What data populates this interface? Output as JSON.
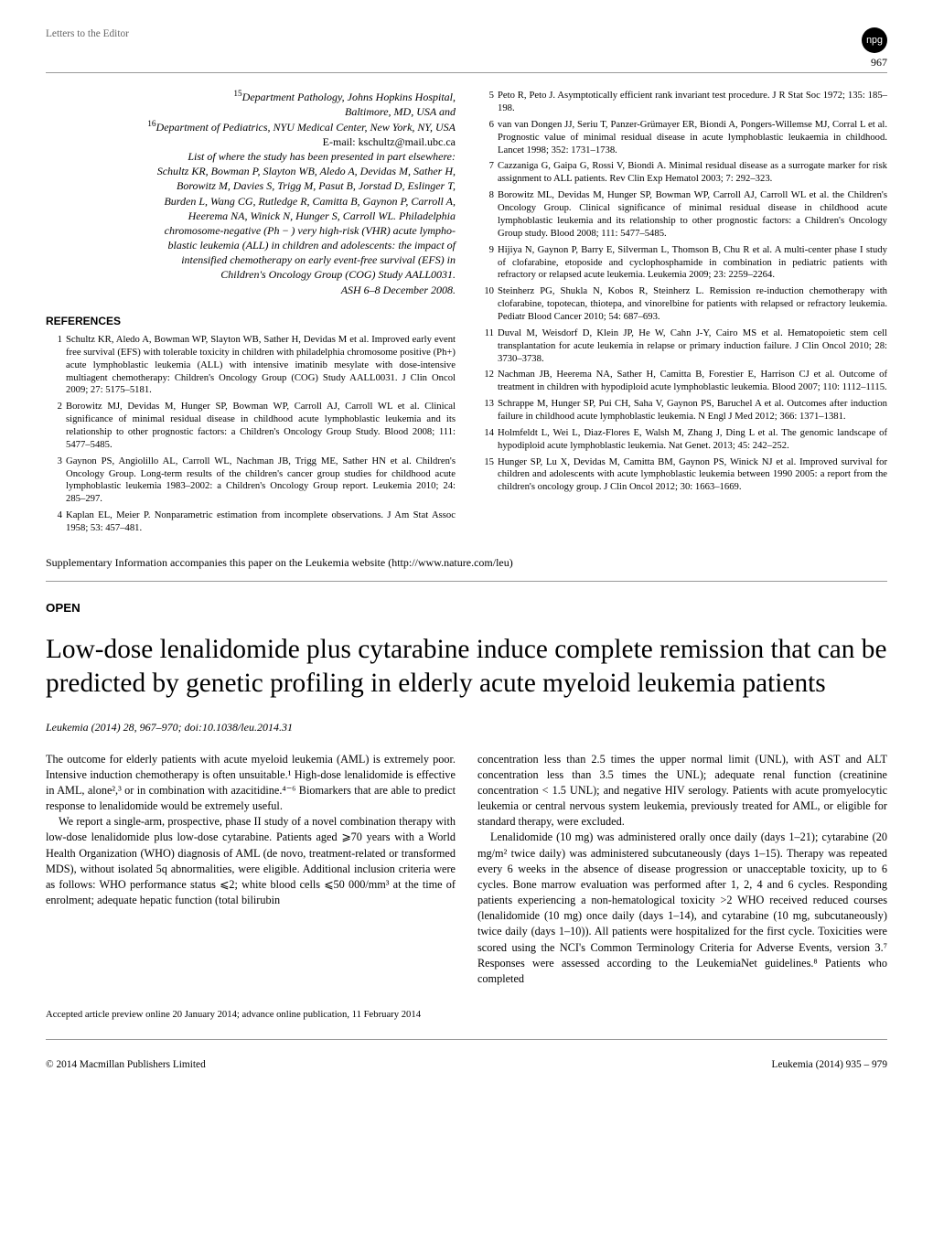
{
  "header": {
    "section_title": "Letters to the Editor",
    "badge": "npg",
    "page_number": "967"
  },
  "affiliations": {
    "line1_sup": "15",
    "line1": "Department Pathology, Johns Hopkins Hospital,",
    "line2": "Baltimore, MD, USA and",
    "line3_sup": "16",
    "line3": "Department of Pediatrics, NYU Medical Center, New York, NY, USA",
    "line4": "E-mail: kschultz@mail.ubc.ca",
    "presented": "List of where the study has been presented in part elsewhere:",
    "authors1": "Schultz KR, Bowman P, Slayton WB, Aledo A, Devidas M, Sather H,",
    "authors2": "Borowitz M, Davies S, Trigg M, Pasut B, Jorstad D, Eslinger T,",
    "authors3": "Burden L, Wang CG, Rutledge R, Camitta B, Gaynon P, Carroll A,",
    "authors4": "Heerema NA, Winick N, Hunger S, Carroll WL. Philadelphia",
    "authors5": "chromosome-negative (Ph − ) very high-risk (VHR) acute lympho-",
    "authors6": "blastic leukemia (ALL) in children and adolescents: the impact of",
    "authors7": "intensified chemotherapy on early event-free survival (EFS) in",
    "authors8": "Children's Oncology Group (COG) Study AALL0031.",
    "authors9": "ASH 6–8 December 2008."
  },
  "refs_heading": "REFERENCES",
  "refs_left": [
    "Schultz KR, Aledo A, Bowman WP, Slayton WB, Sather H, Devidas M et al. Improved early event free survival (EFS) with tolerable toxicity in children with philadelphia chromosome positive (Ph+) acute lymphoblastic leukemia (ALL) with intensive imatinib mesylate with dose-intensive multiagent chemotherapy: Children's Oncology Group (COG) Study AALL0031. J Clin Oncol 2009; 27: 5175–5181.",
    "Borowitz MJ, Devidas M, Hunger SP, Bowman WP, Carroll AJ, Carroll WL et al. Clinical significance of minimal residual disease in childhood acute lymphoblastic leukemia and its relationship to other prognostic factors: a Children's Oncology Group Study. Blood 2008; 111: 5477–5485.",
    "Gaynon PS, Angiolillo AL, Carroll WL, Nachman JB, Trigg ME, Sather HN et al. Children's Oncology Group. Long-term results of the children's cancer group studies for childhood acute lymphoblastic leukemia 1983–2002: a Children's Oncology Group report. Leukemia 2010; 24: 285–297.",
    "Kaplan EL, Meier P. Nonparametric estimation from incomplete observations. J Am Stat Assoc 1958; 53: 457–481."
  ],
  "refs_right": [
    "Peto R, Peto J. Asymptotically efficient rank invariant test procedure. J R Stat Soc 1972; 135: 185–198.",
    "van van Dongen JJ, Seriu T, Panzer-Grümayer ER, Biondi A, Pongers-Willemse MJ, Corral L et al. Prognostic value of minimal residual disease in acute lymphoblastic leukaemia in childhood. Lancet 1998; 352: 1731–1738.",
    "Cazzaniga G, Gaipa G, Rossi V, Biondi A. Minimal residual disease as a surrogate marker for risk assignment to ALL patients. Rev Clin Exp Hematol 2003; 7: 292–323.",
    "Borowitz ML, Devidas M, Hunger SP, Bowman WP, Carroll AJ, Carroll WL et al. the Children's Oncology Group. Clinical significance of minimal residual disease in childhood acute lymphoblastic leukemia and its relationship to other prognostic factors: a Children's Oncology Group study. Blood 2008; 111: 5477–5485.",
    "Hijiya N, Gaynon P, Barry E, Silverman L, Thomson B, Chu R et al. A multi-center phase I study of clofarabine, etoposide and cyclophosphamide in combination in pediatric patients with refractory or relapsed acute leukemia. Leukemia 2009; 23: 2259–2264.",
    "Steinherz PG, Shukla N, Kobos R, Steinherz L. Remission re-induction chemotherapy with clofarabine, topotecan, thiotepa, and vinorelbine for patients with relapsed or refractory leukemia. Pediatr Blood Cancer 2010; 54: 687–693.",
    "Duval M, Weisdorf D, Klein JP, He W, Cahn J-Y, Cairo MS et al. Hematopoietic stem cell transplantation for acute leukemia in relapse or primary induction failure. J Clin Oncol 2010; 28: 3730–3738.",
    "Nachman JB, Heerema NA, Sather H, Camitta B, Forestier E, Harrison CJ et al. Outcome of treatment in children with hypodiploid acute lymphoblastic leukemia. Blood 2007; 110: 1112–1115.",
    "Schrappe M, Hunger SP, Pui CH, Saha V, Gaynon PS, Baruchel A et al. Outcomes after induction failure in childhood acute lymphoblastic leukemia. N Engl J Med 2012; 366: 1371–1381.",
    "Holmfeldt L, Wei L, Diaz-Flores E, Walsh M, Zhang J, Ding L et al. The genomic landscape of hypodiploid acute lymphoblastic leukemia. Nat Genet. 2013; 45: 242–252.",
    "Hunger SP, Lu X, Devidas M, Camitta BM, Gaynon PS, Winick NJ et al. Improved survival for children and adolescents with acute lymphoblastic leukemia between 1990 2005: a report from the children's oncology group. J Clin Oncol 2012; 30: 1663–1669."
  ],
  "supp": "Supplementary Information accompanies this paper on the Leukemia website (http://www.nature.com/leu)",
  "open": "OPEN",
  "title": "Low-dose lenalidomide plus cytarabine induce complete remission that can be predicted by genetic profiling in elderly acute myeloid leukemia patients",
  "cite": "Leukemia (2014) 28, 967–970; doi:10.1038/leu.2014.31",
  "body_left": {
    "p1": "The outcome for elderly patients with acute myeloid leukemia (AML) is extremely poor. Intensive induction chemotherapy is often unsuitable.¹ High-dose lenalidomide is effective in AML, alone²,³ or in combination with azacitidine.⁴⁻⁶ Biomarkers that are able to predict response to lenalidomide would be extremely useful.",
    "p2": "We report a single-arm, prospective, phase II study of a novel combination therapy with low-dose lenalidomide plus low-dose cytarabine. Patients aged ⩾70 years with a World Health Organization (WHO) diagnosis of AML (de novo, treatment-related or transformed MDS), without isolated 5q abnormalities, were eligible. Additional inclusion criteria were as follows: WHO performance status ⩽2; white blood cells ⩽50 000/mm³ at the time of enrolment; adequate hepatic function (total bilirubin"
  },
  "body_right": {
    "p1": "concentration less than 2.5 times the upper normal limit (UNL), with AST and ALT concentration less than 3.5 times the UNL); adequate renal function (creatinine concentration < 1.5 UNL); and negative HIV serology. Patients with acute promyelocytic leukemia or central nervous system leukemia, previously treated for AML, or eligible for standard therapy, were excluded.",
    "p2": "Lenalidomide (10 mg) was administered orally once daily (days 1–21); cytarabine (20 mg/m² twice daily) was administered subcutaneously (days 1–15). Therapy was repeated every 6 weeks in the absence of disease progression or unacceptable toxicity, up to 6 cycles. Bone marrow evaluation was performed after 1, 2, 4 and 6 cycles. Responding patients experiencing a non-hematological toxicity >2 WHO received reduced courses (lenalidomide (10 mg) once daily (days 1–14), and cytarabine (10 mg, subcutaneously) twice daily (days 1–10)). All patients were hospitalized for the first cycle. Toxicities were scored using the NCI's Common Terminology Criteria for Adverse Events, version 3.⁷ Responses were assessed according to the LeukemiaNet guidelines.⁸ Patients who completed"
  },
  "accepted": "Accepted article preview online 20 January 2014; advance online publication, 11 February 2014",
  "footer": {
    "left": "© 2014 Macmillan Publishers Limited",
    "right": "Leukemia (2014) 935 – 979"
  }
}
